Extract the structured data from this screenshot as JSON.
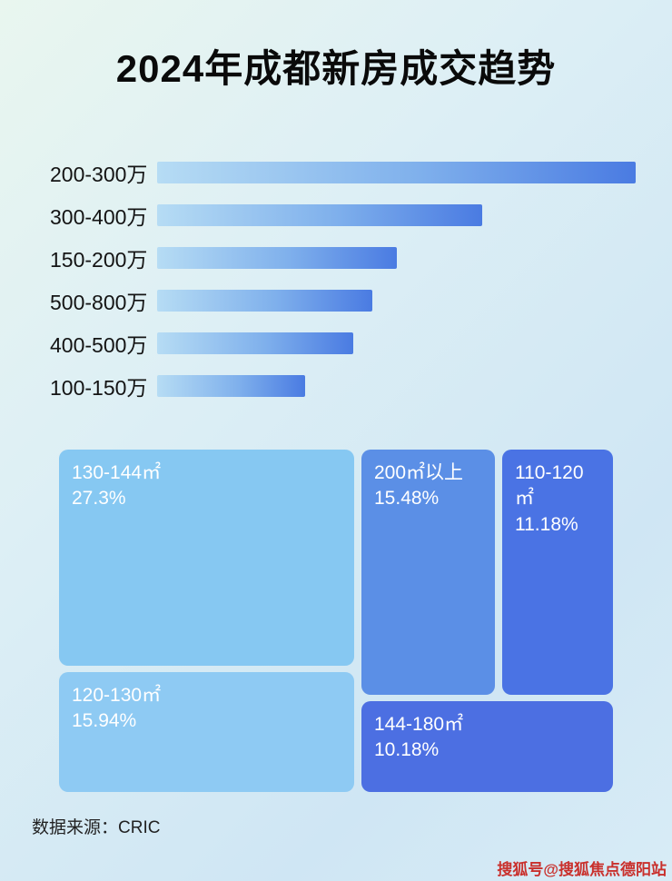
{
  "page": {
    "title": "2024年成都新房成交趋势",
    "source_label": "数据来源：CRIC",
    "watermark": "搜狐号@搜狐焦点德阳站"
  },
  "colors": {
    "bar_gradient_start": "#b6dcf4",
    "bar_gradient_end": "#4a7be2",
    "tile_light_blue": "#86c8f2",
    "tile_light_blue_2": "#8ecaf3",
    "tile_medium_blue": "#5b8fe6",
    "tile_royal_blue": "#4a73e4",
    "tile_royal_blue_2": "#4c6fe2",
    "watermark_red": "#c9302c"
  },
  "chart_data": [
    {
      "type": "bar",
      "orientation": "horizontal",
      "title": "2024年成都新房成交趋势",
      "categories": [
        "200-300万",
        "300-400万",
        "150-200万",
        "500-800万",
        "400-500万",
        "100-150万"
      ],
      "values": [
        100,
        68,
        50,
        45,
        41,
        31
      ],
      "value_note": "relative bar lengths as percent of longest bar; no numeric axis shown in image",
      "xlabel": "",
      "ylabel": "",
      "grid": false,
      "legend": false
    },
    {
      "type": "treemap",
      "items": [
        {
          "label": "130-144㎡",
          "value": 27.3,
          "pct_label": "27.3%"
        },
        {
          "label": "200㎡以上",
          "value": 15.48,
          "pct_label": "15.48%"
        },
        {
          "label": "110-120㎡",
          "value": 11.18,
          "pct_label": "11.18%"
        },
        {
          "label": "120-130㎡",
          "value": 15.94,
          "pct_label": "15.94%"
        },
        {
          "label": "144-180㎡",
          "value": 10.18,
          "pct_label": "10.18%"
        }
      ]
    }
  ]
}
